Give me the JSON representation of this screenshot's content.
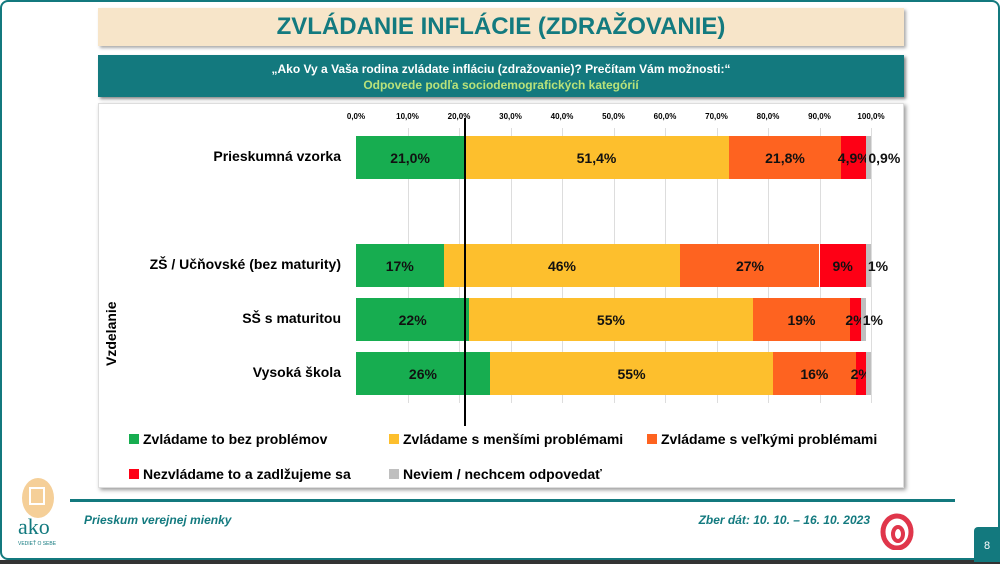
{
  "header": {
    "title": "ZVLÁDANIE INFLÁCIE (ZDRAŽOVANIE)",
    "question": "„Ako Vy a Vaša rodina zvládate infláciu (zdražovanie)? Prečítam Vám možnosti:“",
    "subtitle": "Odpovede podľa sociodemografických kategórií"
  },
  "chart_data": {
    "type": "bar",
    "orientation": "horizontal",
    "stacked": true,
    "xlim": [
      0,
      100
    ],
    "ticks": [
      "0,0%",
      "10,0%",
      "20,0%",
      "30,0%",
      "40,0%",
      "50,0%",
      "60,0%",
      "70,0%",
      "80,0%",
      "90,0%",
      "100,0%"
    ],
    "group_label": "Vzdelanie",
    "categories": [
      "Prieskumná vzorka",
      "ZŠ / Učňovské (bez maturity)",
      "SŠ s maturitou",
      "Vysoká škola"
    ],
    "series": [
      {
        "name": "Zvládame to bez problémov",
        "color": "#17ad50",
        "values": [
          21.0,
          17,
          22,
          26
        ],
        "labels": [
          "21,0%",
          "17%",
          "22%",
          "26%"
        ]
      },
      {
        "name": "Zvládame s menšími problémami",
        "color": "#fdbf2d",
        "values": [
          51.4,
          46,
          55,
          55
        ],
        "labels": [
          "51,4%",
          "46%",
          "55%",
          "55%"
        ]
      },
      {
        "name": "Zvládame s veľkými problémami",
        "color": "#fe6320",
        "values": [
          21.8,
          27,
          19,
          16
        ],
        "labels": [
          "21,8%",
          "27%",
          "19%",
          "16%"
        ]
      },
      {
        "name": "Nezvládame to a zadlžujeme sa",
        "color": "#fe0015",
        "values": [
          4.9,
          9,
          2,
          2
        ],
        "labels": [
          "4,9%",
          "9%",
          "2%",
          "2%"
        ]
      },
      {
        "name": "Neviem / nechcem odpovedať",
        "color": "#bfbfbf",
        "values": [
          0.9,
          1,
          1,
          1
        ],
        "labels": [
          "0,9%",
          "1%",
          "1%",
          ""
        ]
      }
    ],
    "reference_line": 21.0
  },
  "footer": {
    "left": "Prieskum verejnej mienky",
    "right": "Zber dát: 10. 10. – 16. 10. 2023",
    "page": "8",
    "logo": "ako",
    "logo_tag": "VEDIEŤ O SEBE"
  }
}
